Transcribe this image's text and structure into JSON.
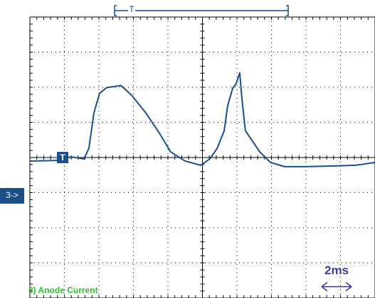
{
  "chart_data": {
    "type": "line",
    "trigger_label": "T",
    "channel_label": "3->",
    "trace_label": "3) Anode Current",
    "timebase_label": "2ms",
    "xlim": [
      0,
      20
    ],
    "ylim": [
      -4,
      4
    ],
    "xticks": [
      0,
      2,
      4,
      6,
      8,
      10,
      12,
      14,
      16,
      18,
      20
    ],
    "yticks": [
      -4,
      -3,
      -2,
      -1,
      0,
      1,
      2,
      3,
      4
    ],
    "grid": true,
    "series": [
      {
        "color": "#1a4f8a",
        "x": [
          0,
          1.77,
          2.39,
          3.13,
          3.42,
          3.71,
          4.04,
          4.45,
          5.28,
          5.9,
          6.72,
          7.55,
          8.16,
          8.99,
          9.9,
          10.43,
          10.85,
          11.26,
          11.46,
          11.75,
          11.96,
          12.16,
          12.29,
          12.49,
          12.91,
          13.32,
          13.94,
          14.76,
          16.0,
          17.65,
          18.89,
          20.0
        ],
        "values": [
          -0.1,
          -0.08,
          0.02,
          -0.04,
          0.26,
          1.27,
          1.83,
          1.99,
          2.05,
          1.77,
          1.27,
          0.66,
          0.16,
          -0.1,
          -0.22,
          -0.04,
          0.26,
          0.76,
          1.47,
          1.97,
          2.11,
          2.41,
          1.67,
          0.76,
          0.46,
          0.16,
          -0.14,
          -0.26,
          -0.26,
          -0.24,
          -0.22,
          -0.14
        ]
      }
    ]
  }
}
